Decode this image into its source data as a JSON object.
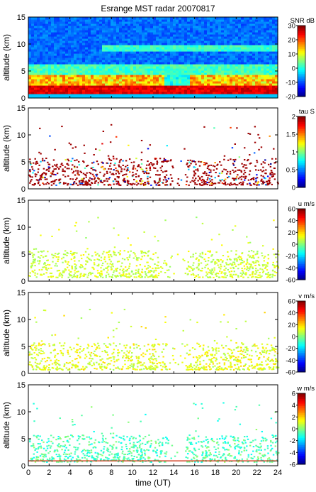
{
  "title": "Esrange MST radar 20070817",
  "chart_data": [
    {
      "type": "heatmap",
      "quantity": "SNR",
      "colorbar_label": "SNR dB",
      "ylabel": "altitude (km)",
      "xlim": [
        0,
        24
      ],
      "ylim": [
        0,
        15
      ],
      "y_ticks": [
        0,
        5,
        10,
        15
      ],
      "colorbar_range": [
        -20,
        30
      ],
      "colorbar_ticks": [
        -20,
        -10,
        0,
        10,
        20,
        30
      ],
      "fill": "full"
    },
    {
      "type": "heatmap",
      "quantity": "tau",
      "colorbar_label": "tau S",
      "ylabel": "altitude (km)",
      "xlim": [
        0,
        24
      ],
      "ylim": [
        0,
        15
      ],
      "y_ticks": [
        0,
        5,
        10,
        15
      ],
      "colorbar_range": [
        0,
        2
      ],
      "colorbar_ticks": [
        0,
        0.5,
        1,
        1.5,
        2
      ],
      "fill": "sparse"
    },
    {
      "type": "heatmap",
      "quantity": "u",
      "colorbar_label": "u m/s",
      "ylabel": "altitude (km)",
      "xlim": [
        0,
        24
      ],
      "ylim": [
        0,
        15
      ],
      "y_ticks": [
        0,
        5,
        10,
        15
      ],
      "colorbar_range": [
        -60,
        60
      ],
      "colorbar_ticks": [
        -60,
        -40,
        -20,
        0,
        20,
        40,
        60
      ],
      "fill": "sparse"
    },
    {
      "type": "heatmap",
      "quantity": "v",
      "colorbar_label": "v m/s",
      "ylabel": "altitude (km)",
      "xlim": [
        0,
        24
      ],
      "ylim": [
        0,
        15
      ],
      "y_ticks": [
        0,
        5,
        10,
        15
      ],
      "colorbar_range": [
        -60,
        60
      ],
      "colorbar_ticks": [
        -60,
        -40,
        -20,
        0,
        20,
        40,
        60
      ],
      "fill": "sparse"
    },
    {
      "type": "heatmap",
      "quantity": "w",
      "colorbar_label": "w m/s",
      "ylabel": "altitude (km)",
      "xlabel": "time (UT)",
      "xlim": [
        0,
        24
      ],
      "ylim": [
        0,
        15
      ],
      "x_ticks": [
        0,
        2,
        4,
        6,
        8,
        10,
        12,
        14,
        16,
        18,
        20,
        22,
        24
      ],
      "y_ticks": [
        0,
        5,
        10,
        15
      ],
      "colorbar_range": [
        -6,
        6
      ],
      "colorbar_ticks": [
        -6,
        -4,
        -2,
        0,
        2,
        4,
        6
      ],
      "fill": "sparse"
    }
  ]
}
